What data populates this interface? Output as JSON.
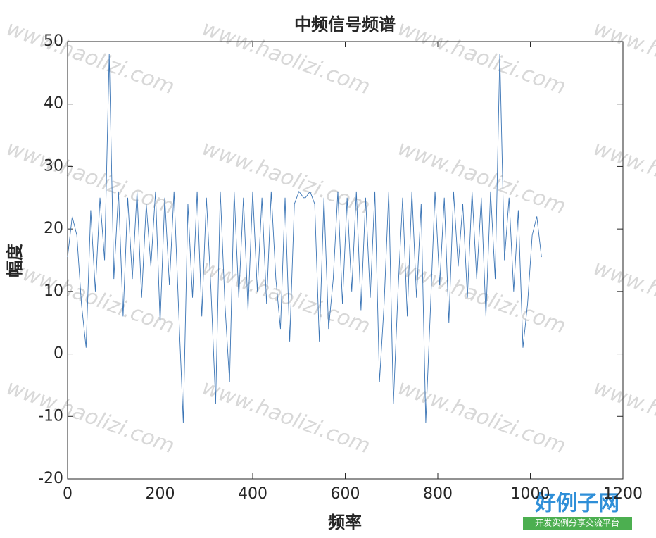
{
  "chart_data": {
    "type": "line",
    "title": "中频信号频谱",
    "x_label": "频率",
    "y_label": "幅度",
    "x": [
      0,
      10,
      20,
      30,
      40,
      50,
      60,
      70,
      80,
      90,
      100,
      110,
      120,
      130,
      140,
      150,
      160,
      170,
      180,
      190,
      200,
      210,
      220,
      230,
      240,
      250,
      260,
      270,
      280,
      290,
      300,
      310,
      320,
      330,
      340,
      350,
      360,
      370,
      380,
      390,
      400,
      410,
      420,
      430,
      440,
      450,
      460,
      470,
      480,
      490,
      500,
      510,
      514,
      524,
      534,
      544,
      554,
      564,
      574,
      584,
      594,
      604,
      614,
      624,
      634,
      644,
      654,
      664,
      674,
      684,
      694,
      704,
      714,
      724,
      734,
      744,
      754,
      764,
      774,
      784,
      794,
      804,
      814,
      824,
      834,
      844,
      854,
      864,
      874,
      884,
      894,
      904,
      914,
      924,
      934,
      944,
      954,
      964,
      974,
      984,
      994,
      1004,
      1014,
      1024
    ],
    "values": [
      15.5,
      22,
      19,
      8,
      1,
      23,
      10,
      25,
      15,
      48,
      12,
      26,
      6,
      25,
      12,
      26,
      9,
      24,
      14,
      26,
      5,
      25,
      11,
      26,
      7,
      -11,
      24,
      9,
      26,
      6,
      25,
      10,
      -8,
      26,
      8,
      -4.5,
      26,
      9,
      25,
      7,
      26,
      10,
      25,
      8,
      26,
      12,
      4,
      25,
      2,
      24,
      26,
      25,
      25,
      26,
      24,
      2,
      25,
      4,
      12,
      26,
      8,
      25,
      10,
      26,
      7,
      25,
      9,
      26,
      -4.5,
      8,
      26,
      -8,
      10,
      25,
      6,
      26,
      9,
      24,
      -11,
      7,
      26,
      11,
      25,
      5,
      26,
      14,
      24,
      9,
      26,
      12,
      25,
      6,
      26,
      12,
      48,
      15,
      25,
      10,
      23,
      1,
      8,
      19,
      22,
      15.5
    ],
    "color": "#3a74b5",
    "xlim": [
      0,
      1200
    ],
    "xticks": [
      0,
      200,
      400,
      600,
      800,
      1000,
      1200
    ],
    "ylim": [
      -20,
      50
    ],
    "yticks": [
      -20,
      -10,
      0,
      10,
      20,
      30,
      40,
      50
    ]
  },
  "watermark": "www.haolizi.com",
  "logo": {
    "title": "好例子网",
    "subtitle": "开发实例分享交流平台"
  }
}
